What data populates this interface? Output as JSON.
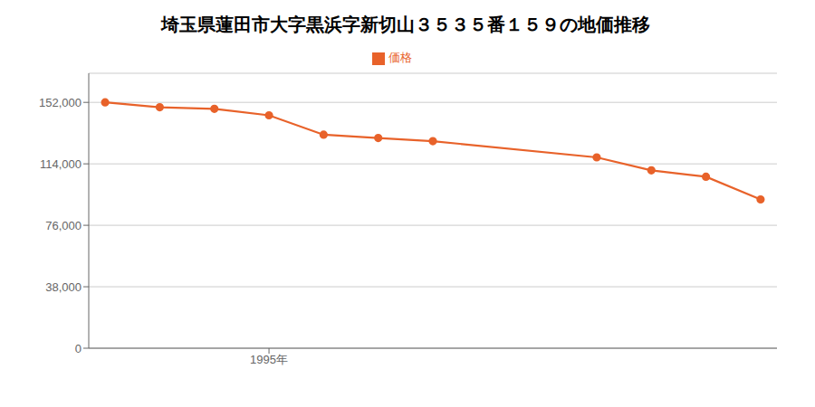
{
  "chart_data": {
    "type": "line",
    "title": "埼玉県蓮田市大字黒浜字新切山３５３５番１５９の地価推移",
    "x": [
      1992,
      1993,
      1994,
      1995,
      1996,
      1997,
      1998,
      2001,
      2002,
      2003,
      2004
    ],
    "series": [
      {
        "name": "価格",
        "color": "#E8622A",
        "marker": "circle",
        "values": [
          152000,
          149000,
          148000,
          144000,
          132000,
          130000,
          128000,
          118000,
          110000,
          106000,
          92000
        ]
      }
    ],
    "xlim": [
      1991.7,
      2004.3
    ],
    "xticks": [
      {
        "value": 1995,
        "label": "1995年"
      }
    ],
    "ylim": [
      0,
      170000
    ],
    "yticks": [
      0,
      {
        "value": 38000,
        "label": "38,000"
      },
      {
        "value": 76000,
        "label": "76,000"
      },
      {
        "value": 114000,
        "label": "114,000"
      },
      {
        "value": 152000,
        "label": "152,000"
      }
    ],
    "grid": true,
    "legend": "top"
  }
}
